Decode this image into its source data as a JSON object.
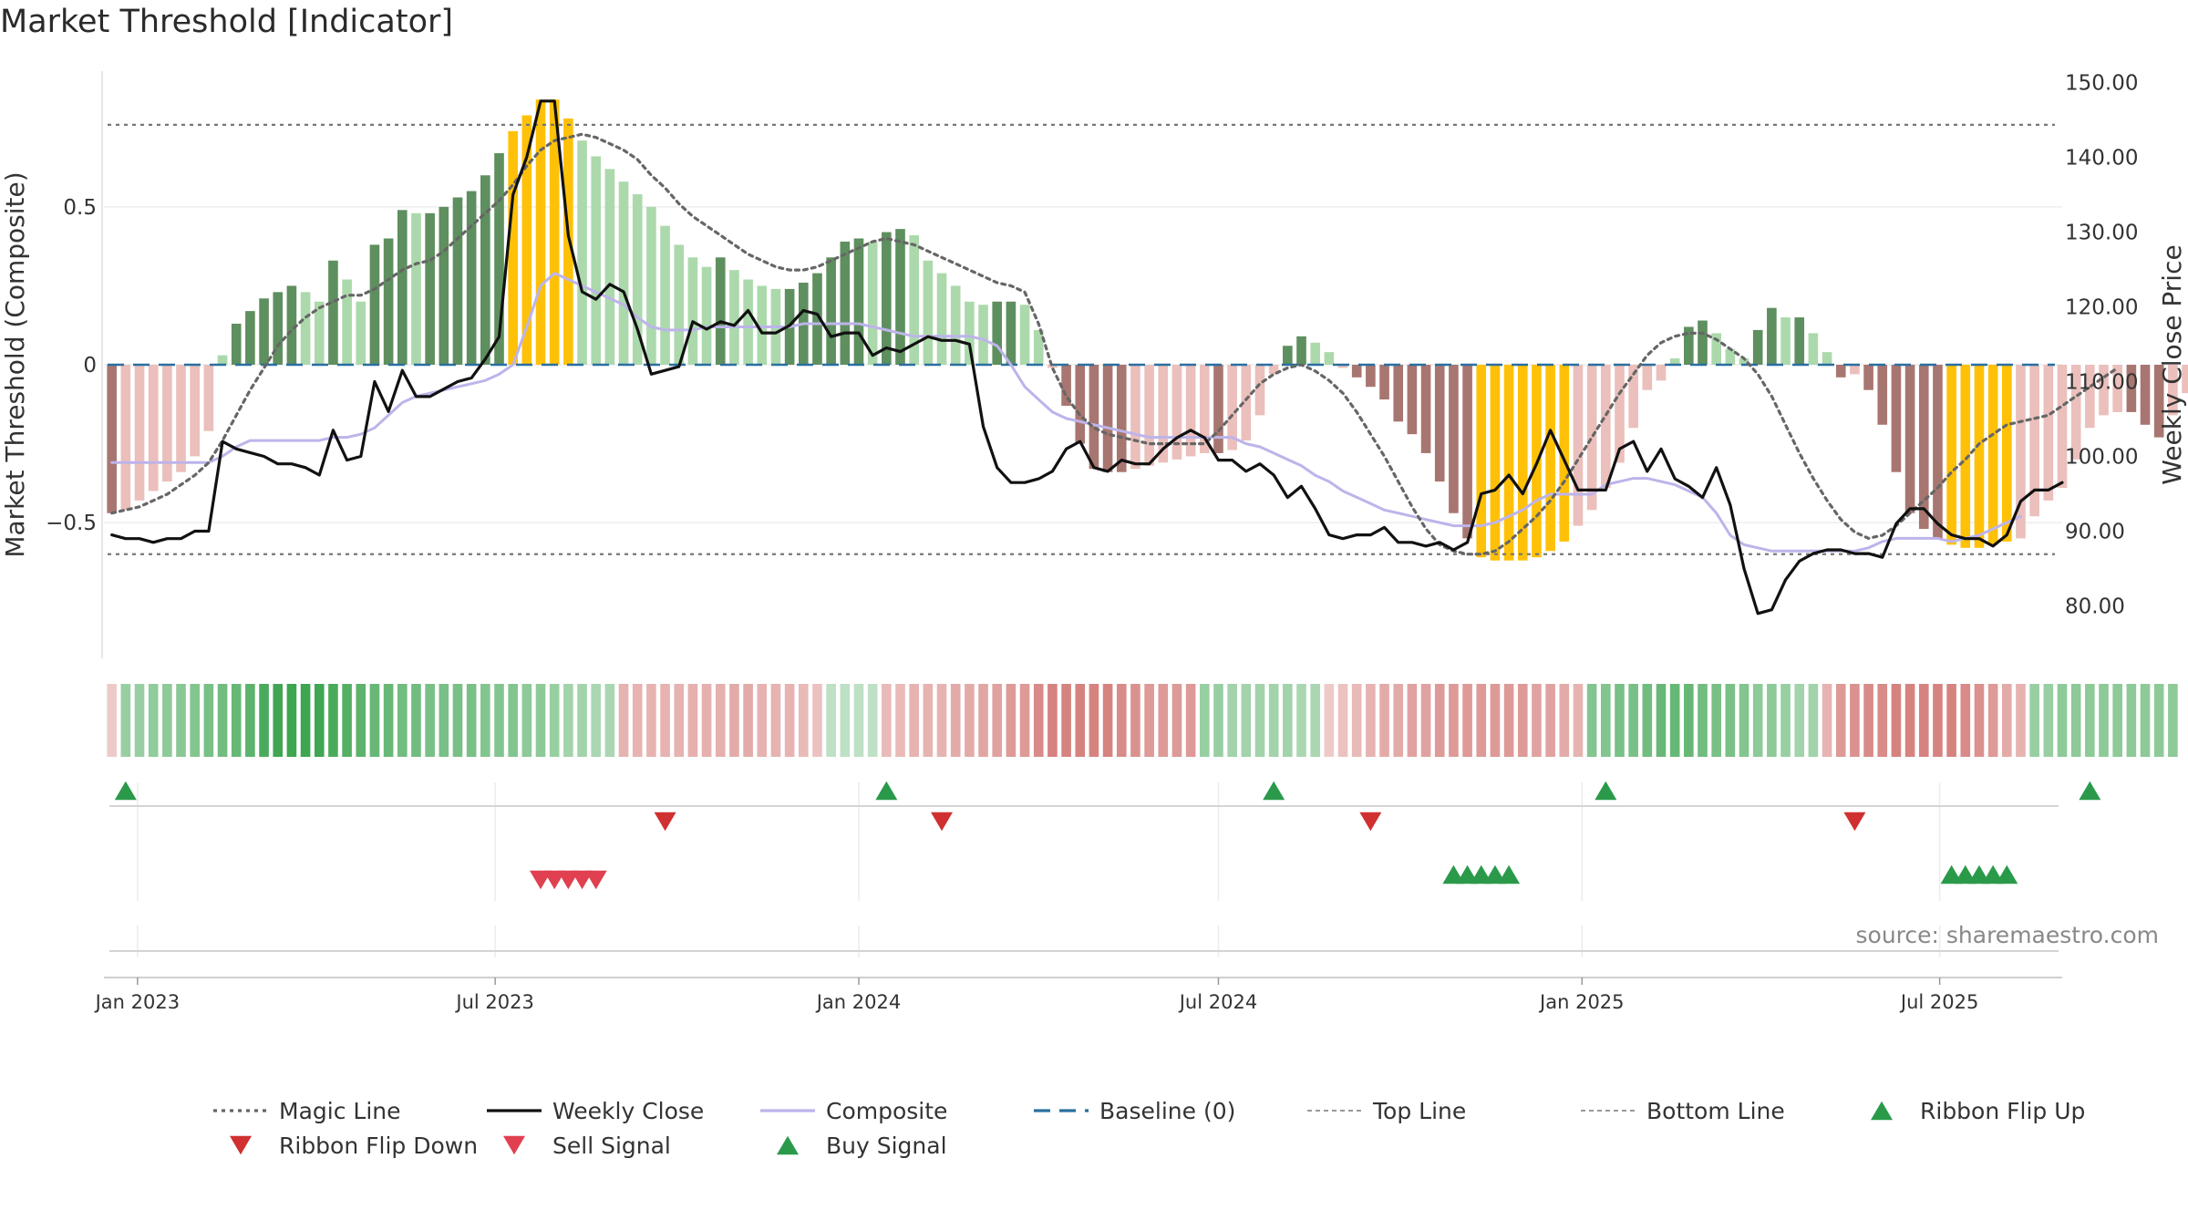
{
  "chart_data": {
    "type": "bar",
    "title": "Market Threshold [Indicator]",
    "source": "source: sharemaestro.com",
    "y_left": {
      "label": "Market Threshold (Composite)",
      "range": [
        -0.93,
        0.93
      ],
      "ticks": [
        -0.5,
        0,
        0.5
      ],
      "tick_labels": [
        "−0.5",
        "0",
        "0.5"
      ]
    },
    "y_right": {
      "label": "Weekly Close Price",
      "range": [
        73,
        151.5
      ],
      "ticks": [
        80,
        90,
        100,
        110,
        120,
        130,
        140,
        150
      ],
      "tick_labels": [
        "80.00",
        "90.00",
        "100.00",
        "110.00",
        "120.00",
        "130.00",
        "140.00",
        "150.00"
      ]
    },
    "x_range": [
      "2022-12-15",
      "2025-09-01"
    ],
    "x_ticks": [
      {
        "date": "2023-01-01",
        "label": "Jan 2023"
      },
      {
        "date": "2023-07-01",
        "label": "Jul 2023"
      },
      {
        "date": "2024-01-01",
        "label": "Jan 2024"
      },
      {
        "date": "2024-07-01",
        "label": "Jul 2024"
      },
      {
        "date": "2025-01-01",
        "label": "Jan 2025"
      },
      {
        "date": "2025-07-01",
        "label": "Jul 2025"
      }
    ],
    "start_date": "2022-12-19",
    "top_line": 0.76,
    "bottom_line": -0.6,
    "composite_bars": [
      -0.47,
      -0.46,
      -0.43,
      -0.4,
      -0.37,
      -0.34,
      -0.29,
      -0.21,
      0.03,
      0.13,
      0.17,
      0.21,
      0.23,
      0.25,
      0.23,
      0.2,
      0.33,
      0.27,
      0.2,
      0.38,
      0.4,
      0.49,
      0.48,
      0.48,
      0.5,
      0.53,
      0.55,
      0.6,
      0.67,
      0.74,
      0.79,
      0.84,
      0.84,
      0.78,
      0.71,
      0.66,
      0.62,
      0.58,
      0.54,
      0.5,
      0.44,
      0.38,
      0.34,
      0.31,
      0.34,
      0.3,
      0.27,
      0.25,
      0.24,
      0.24,
      0.26,
      0.29,
      0.34,
      0.39,
      0.4,
      0.39,
      0.42,
      0.43,
      0.41,
      0.33,
      0.29,
      0.25,
      0.2,
      0.19,
      0.2,
      0.2,
      0.19,
      0.11,
      -0.01,
      -0.13,
      -0.25,
      -0.33,
      -0.34,
      -0.34,
      -0.33,
      -0.32,
      -0.31,
      -0.3,
      -0.29,
      -0.28,
      -0.28,
      -0.27,
      -0.24,
      -0.16,
      -0.03,
      0.06,
      0.09,
      0.07,
      0.04,
      -0.01,
      -0.04,
      -0.07,
      -0.11,
      -0.18,
      -0.22,
      -0.28,
      -0.37,
      -0.47,
      -0.55,
      -0.61,
      -0.62,
      -0.62,
      -0.62,
      -0.61,
      -0.59,
      -0.56,
      -0.51,
      -0.46,
      -0.39,
      -0.31,
      -0.2,
      -0.08,
      -0.05,
      0.02,
      0.12,
      0.14,
      0.1,
      0.05,
      0.02,
      0.11,
      0.18,
      0.15,
      0.15,
      0.1,
      0.04,
      -0.04,
      -0.03,
      -0.08,
      -0.19,
      -0.34,
      -0.47,
      -0.52,
      -0.55,
      -0.57,
      -0.58,
      -0.58,
      -0.57,
      -0.56,
      -0.55,
      -0.48,
      -0.43,
      -0.39,
      -0.3,
      -0.2,
      -0.16,
      -0.15,
      -0.15,
      -0.19,
      -0.23,
      -0.16,
      -0.09,
      -0.05
    ],
    "weekly_close": [
      89.5,
      89.0,
      89.0,
      88.5,
      89.0,
      89.0,
      90.0,
      90.0,
      102.0,
      101.0,
      100.5,
      100.0,
      99.0,
      99.0,
      98.5,
      97.5,
      103.5,
      99.5,
      100.0,
      110.0,
      106.0,
      111.5,
      108.0,
      108.0,
      109.0,
      110.0,
      110.5,
      113.0,
      116.0,
      135.0,
      140.0,
      147.5,
      147.5,
      129.5,
      122.0,
      121.0,
      123.0,
      122.0,
      117.0,
      111.0,
      111.5,
      112.0,
      118.0,
      117.0,
      118.0,
      117.5,
      119.5,
      116.5,
      116.5,
      117.5,
      119.5,
      119.0,
      116.0,
      116.5,
      116.5,
      113.5,
      114.5,
      114.0,
      115.0,
      116.0,
      115.5,
      115.5,
      115.0,
      104.0,
      98.5,
      96.5,
      96.5,
      97.0,
      98.0,
      101.0,
      102.0,
      98.5,
      98.0,
      99.5,
      99.0,
      99.0,
      101.0,
      102.5,
      103.5,
      102.5,
      99.5,
      99.5,
      98.0,
      99.0,
      97.5,
      94.5,
      96.0,
      93.0,
      89.5,
      89.0,
      89.5,
      89.5,
      90.5,
      88.5,
      88.5,
      88.0,
      88.5,
      87.5,
      88.5,
      95.0,
      95.5,
      97.5,
      95.0,
      99.0,
      103.5,
      99.5,
      95.5,
      95.5,
      95.5,
      101.0,
      102.0,
      98.0,
      101.0,
      97.0,
      96.0,
      94.5,
      98.5,
      93.5,
      85.0,
      79.0,
      79.5,
      83.5,
      86.0,
      87.0,
      87.5,
      87.5,
      87.0,
      87.0,
      86.5,
      91.0,
      93.0,
      93.0,
      91.0,
      89.5,
      89.0,
      89.0,
      88.0,
      89.5,
      94.0,
      95.5,
      95.5,
      96.5
    ],
    "magic_line": [
      -0.47,
      -0.46,
      -0.45,
      -0.43,
      -0.41,
      -0.38,
      -0.35,
      -0.31,
      -0.24,
      -0.16,
      -0.08,
      -0.01,
      0.06,
      0.11,
      0.15,
      0.18,
      0.2,
      0.22,
      0.22,
      0.24,
      0.27,
      0.3,
      0.32,
      0.33,
      0.36,
      0.4,
      0.44,
      0.48,
      0.52,
      0.57,
      0.63,
      0.68,
      0.71,
      0.72,
      0.73,
      0.72,
      0.7,
      0.68,
      0.65,
      0.6,
      0.56,
      0.51,
      0.47,
      0.44,
      0.41,
      0.38,
      0.35,
      0.33,
      0.31,
      0.3,
      0.3,
      0.31,
      0.33,
      0.35,
      0.37,
      0.39,
      0.4,
      0.39,
      0.38,
      0.36,
      0.34,
      0.32,
      0.3,
      0.28,
      0.26,
      0.25,
      0.23,
      0.13,
      -0.01,
      -0.1,
      -0.16,
      -0.2,
      -0.22,
      -0.23,
      -0.24,
      -0.25,
      -0.25,
      -0.25,
      -0.25,
      -0.25,
      -0.21,
      -0.16,
      -0.11,
      -0.06,
      -0.03,
      -0.01,
      0.0,
      -0.02,
      -0.05,
      -0.09,
      -0.15,
      -0.22,
      -0.29,
      -0.37,
      -0.45,
      -0.52,
      -0.57,
      -0.59,
      -0.6,
      -0.6,
      -0.59,
      -0.56,
      -0.52,
      -0.48,
      -0.43,
      -0.37,
      -0.3,
      -0.23,
      -0.16,
      -0.09,
      -0.03,
      0.03,
      0.07,
      0.09,
      0.1,
      0.1,
      0.08,
      0.05,
      0.02,
      -0.03,
      -0.1,
      -0.19,
      -0.28,
      -0.36,
      -0.43,
      -0.49,
      -0.53,
      -0.55,
      -0.54,
      -0.51,
      -0.47,
      -0.43,
      -0.39,
      -0.34,
      -0.3,
      -0.25,
      -0.22,
      -0.19,
      -0.18,
      -0.17,
      -0.16,
      -0.13,
      -0.1,
      -0.07,
      -0.04,
      -0.01
    ],
    "composite_line": [
      -0.31,
      -0.31,
      -0.31,
      -0.31,
      -0.31,
      -0.31,
      -0.31,
      -0.31,
      -0.29,
      -0.26,
      -0.24,
      -0.24,
      -0.24,
      -0.24,
      -0.24,
      -0.24,
      -0.23,
      -0.23,
      -0.22,
      -0.2,
      -0.16,
      -0.12,
      -0.1,
      -0.09,
      -0.08,
      -0.07,
      -0.06,
      -0.05,
      -0.03,
      0.0,
      0.12,
      0.25,
      0.29,
      0.27,
      0.25,
      0.23,
      0.21,
      0.19,
      0.15,
      0.12,
      0.11,
      0.11,
      0.11,
      0.12,
      0.12,
      0.12,
      0.12,
      0.12,
      0.12,
      0.12,
      0.13,
      0.13,
      0.13,
      0.13,
      0.13,
      0.12,
      0.11,
      0.1,
      0.09,
      0.09,
      0.09,
      0.09,
      0.09,
      0.08,
      0.06,
      0.0,
      -0.07,
      -0.11,
      -0.15,
      -0.17,
      -0.18,
      -0.19,
      -0.2,
      -0.21,
      -0.22,
      -0.23,
      -0.23,
      -0.23,
      -0.23,
      -0.23,
      -0.23,
      -0.23,
      -0.25,
      -0.26,
      -0.28,
      -0.3,
      -0.32,
      -0.35,
      -0.37,
      -0.4,
      -0.42,
      -0.44,
      -0.46,
      -0.47,
      -0.48,
      -0.49,
      -0.5,
      -0.51,
      -0.51,
      -0.51,
      -0.5,
      -0.48,
      -0.46,
      -0.43,
      -0.41,
      -0.41,
      -0.41,
      -0.41,
      -0.38,
      -0.37,
      -0.36,
      -0.36,
      -0.37,
      -0.38,
      -0.4,
      -0.42,
      -0.47,
      -0.54,
      -0.57,
      -0.58,
      -0.59,
      -0.59,
      -0.59,
      -0.59,
      -0.59,
      -0.59,
      -0.59,
      -0.58,
      -0.56,
      -0.55,
      -0.55,
      -0.55,
      -0.55,
      -0.56,
      -0.55,
      -0.54,
      -0.52,
      -0.5,
      -0.48
    ],
    "ribbon": [
      -0.15,
      0.35,
      0.35,
      0.38,
      0.4,
      0.42,
      0.45,
      0.5,
      0.55,
      0.6,
      0.65,
      0.75,
      0.8,
      0.85,
      0.85,
      0.8,
      0.75,
      0.7,
      0.65,
      0.6,
      0.6,
      0.55,
      0.55,
      0.5,
      0.5,
      0.5,
      0.5,
      0.45,
      0.45,
      0.45,
      0.4,
      0.4,
      0.35,
      0.3,
      0.3,
      0.25,
      0.25,
      -0.3,
      -0.3,
      -0.3,
      -0.3,
      -0.3,
      -0.32,
      -0.32,
      -0.32,
      -0.35,
      -0.35,
      -0.3,
      -0.3,
      -0.3,
      -0.25,
      -0.2,
      0.15,
      0.15,
      0.15,
      0.15,
      -0.25,
      -0.25,
      -0.3,
      -0.3,
      -0.3,
      -0.35,
      -0.35,
      -0.38,
      -0.4,
      -0.45,
      -0.45,
      -0.55,
      -0.6,
      -0.6,
      -0.6,
      -0.6,
      -0.6,
      -0.55,
      -0.5,
      -0.45,
      -0.45,
      -0.45,
      -0.45,
      0.35,
      0.35,
      0.3,
      0.3,
      0.3,
      0.3,
      0.3,
      0.25,
      0.25,
      -0.15,
      -0.2,
      -0.25,
      -0.3,
      -0.35,
      -0.35,
      -0.4,
      -0.4,
      -0.45,
      -0.45,
      -0.45,
      -0.45,
      -0.45,
      -0.45,
      -0.45,
      -0.4,
      -0.4,
      -0.35,
      -0.3,
      0.45,
      0.45,
      0.5,
      0.5,
      0.55,
      0.6,
      0.6,
      0.6,
      0.55,
      0.5,
      0.5,
      0.45,
      0.4,
      0.4,
      0.35,
      0.3,
      0.3,
      -0.3,
      -0.45,
      -0.5,
      -0.55,
      -0.55,
      -0.6,
      -0.6,
      -0.6,
      -0.6,
      -0.6,
      -0.55,
      -0.5,
      -0.45,
      -0.35,
      -0.3,
      0.35,
      0.35,
      0.4,
      0.4,
      0.4,
      0.4,
      0.4,
      0.4,
      0.4,
      0.4,
      0.4
    ],
    "markers": {
      "ribbon_flip_up": [
        1,
        56,
        84,
        108,
        143
      ],
      "ribbon_flip_down": [
        40,
        60,
        91,
        126
      ],
      "sell_signal": [
        31,
        32,
        33,
        34,
        35
      ],
      "buy_signal": [
        97,
        98,
        99,
        100,
        101,
        133,
        134,
        135,
        136,
        137
      ]
    },
    "legend": {
      "placement": "bottom",
      "entries": [
        {
          "label": "Magic Line",
          "kind": "line",
          "color": "#666666",
          "dash": "dot"
        },
        {
          "label": "Weekly Close",
          "kind": "line",
          "color": "#111111",
          "dash": "solid"
        },
        {
          "label": "Composite",
          "kind": "line",
          "color": "#bdb4ea",
          "dash": "solid"
        },
        {
          "label": "Baseline (0)",
          "kind": "line",
          "color": "#2a6fa0",
          "dash": "dash"
        },
        {
          "label": "Top Line",
          "kind": "line",
          "color": "#999999",
          "dash": "fine"
        },
        {
          "label": "Bottom Line",
          "kind": "line",
          "color": "#999999",
          "dash": "fine"
        },
        {
          "label": "Ribbon Flip Up",
          "kind": "tri-up",
          "color": "#2a9a4a"
        },
        {
          "label": "Ribbon Flip Down",
          "kind": "tri-down",
          "color": "#d03030"
        },
        {
          "label": "Sell Signal",
          "kind": "tri-down",
          "color": "#e04050"
        },
        {
          "label": "Buy Signal",
          "kind": "tri-up",
          "color": "#2a9a4a"
        }
      ]
    },
    "colors": {
      "bull_strong": "#5e8f5e",
      "bull_weak": "#acd9ac",
      "bear_strong": "#a87670",
      "bear_weak": "#ebbfbb",
      "extreme": "#ffc107",
      "weekly_close": "#111111",
      "magic_line": "#666666",
      "composite": "#bdb4ea",
      "baseline": "#2a6fa0",
      "threshold_lines": "#777777"
    }
  }
}
